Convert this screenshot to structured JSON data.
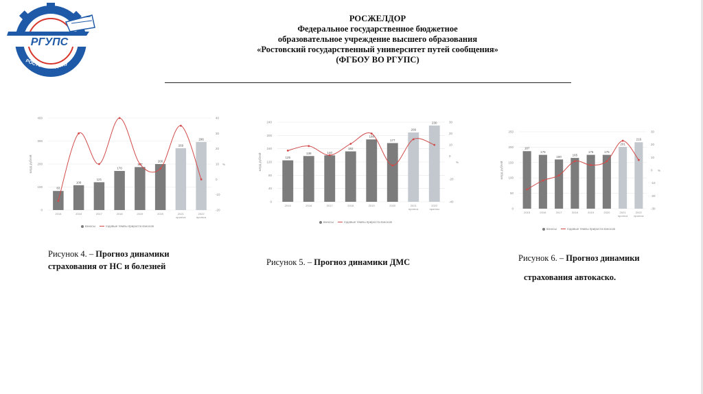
{
  "header": {
    "org": "РОСЖЕЛДОР",
    "line1": "Федеральное государственное бюджетное",
    "line2": "образовательное учреждение высшего образования",
    "line3": "«Ростовский государственный университет путей сообщения»",
    "line4": "(ФГБОУ ВО РГУПС)"
  },
  "logo": {
    "text": "РГУПС",
    "ring_text": "РОСТОВ-НА-ДОНУ",
    "icon": "rgups-emblem"
  },
  "colors": {
    "bar": "#7c7c7c",
    "bar_forecast": "#c3c8ce",
    "line": "#d24a4a"
  },
  "captions": {
    "fig4_prefix": "Рисунок 4. – ",
    "fig4_bold_1": "Прогноз динамики",
    "fig4_bold_2": "страхования от НС и болезней",
    "fig5_prefix": "Рисунок 5.  – ",
    "fig5_bold": "Прогноз динамики ДМС",
    "fig6_prefix": "Рисунок 6.  – ",
    "fig6_bold_1": "Прогноз динамики",
    "fig6_bold_2": "страхования автокаско."
  },
  "chart_data": [
    {
      "type": "bar",
      "ylabel": "млрд рублей",
      "y2label": "%",
      "ylim": [
        0,
        400
      ],
      "yticks": [
        0,
        100,
        200,
        300,
        400
      ],
      "y2lim": [
        -20,
        40
      ],
      "y2ticks": [
        -20,
        -10,
        0,
        10,
        20,
        30,
        40
      ],
      "categories": [
        "2015",
        "2016",
        "2017",
        "2018",
        "2019",
        "2020",
        "2021 прогноз",
        "2022 прогноз"
      ],
      "forecast_from": 6,
      "series": [
        {
          "name": "взносы",
          "kind": "bar",
          "values": [
            83,
            108,
            121,
            170,
            187,
            200,
            269,
            296
          ]
        },
        {
          "name": "годовые темпы прироста взносов",
          "kind": "line",
          "values": [
            -14,
            30,
            10,
            40,
            10,
            7,
            35,
            0
          ]
        }
      ],
      "legend": [
        "взносы",
        "годовые темпы прироста взносов"
      ],
      "grid": true
    },
    {
      "type": "bar",
      "ylabel": "млрд рублей",
      "y2label": "%",
      "ylim": [
        0,
        240
      ],
      "yticks": [
        0,
        40,
        80,
        120,
        160,
        200,
        240
      ],
      "y2lim": [
        -40,
        30
      ],
      "y2ticks": [
        -40,
        -20,
        0,
        10,
        20,
        30
      ],
      "categories": [
        "2015",
        "2016",
        "2017",
        "2018",
        "2019",
        "2020",
        "2021 прогноз",
        "2022 прогноз"
      ],
      "forecast_from": 6,
      "series": [
        {
          "name": "взносы",
          "kind": "bar",
          "values": [
            125,
            138,
            140,
            152,
            188,
            177,
            209,
            230
          ]
        },
        {
          "name": "годовые темпы прироста взносов",
          "kind": "line",
          "values": [
            5,
            9,
            1,
            11,
            20,
            -8,
            15,
            10
          ]
        }
      ],
      "legend": [
        "взносы",
        "годовые темпы прироста взносов"
      ],
      "grid": true
    },
    {
      "type": "bar",
      "ylabel": "млрд рублей",
      "y2label": "%",
      "ylim": [
        0,
        250
      ],
      "yticks": [
        0,
        50,
        100,
        150,
        200,
        250
      ],
      "y2lim": [
        -30,
        30
      ],
      "y2ticks": [
        -30,
        -20,
        -10,
        0,
        10,
        20,
        30
      ],
      "categories": [
        "2015",
        "2016",
        "2017",
        "2018",
        "2019",
        "2020",
        "2021 прогноз",
        "2022 прогноз"
      ],
      "forecast_from": 6,
      "series": [
        {
          "name": "взносы",
          "kind": "bar",
          "values": [
            187,
            175,
            160,
            165,
            175,
            175,
            201,
            216
          ]
        },
        {
          "name": "годовые темпы прироста взносов",
          "kind": "line",
          "values": [
            -15,
            -8,
            -4,
            7,
            4,
            7,
            23,
            8
          ]
        }
      ],
      "legend": [
        "взносы",
        "годовые темпы прироста взносов"
      ],
      "grid": true
    }
  ]
}
